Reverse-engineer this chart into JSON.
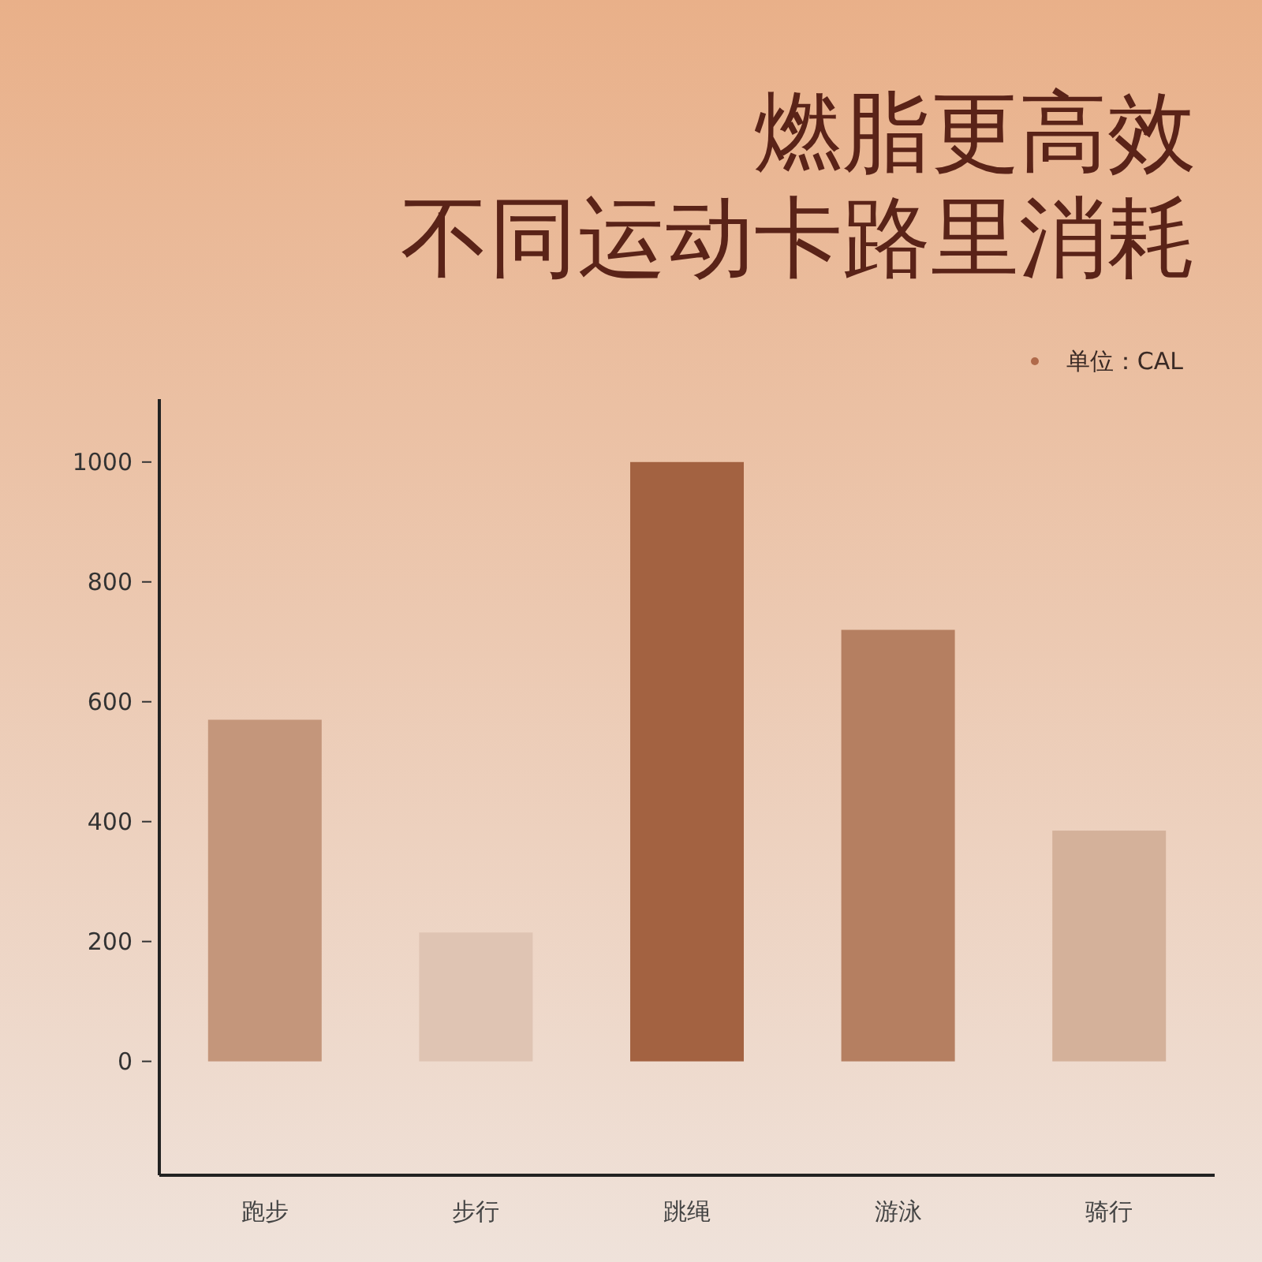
{
  "chart_data": {
    "type": "bar",
    "title": "燃脂更高效",
    "subtitle": "不同运动卡路里消耗",
    "annotations": [
      "单位：CAL"
    ],
    "categories": [
      "跑步",
      "步行",
      "跳绳",
      "游泳",
      "骑行"
    ],
    "values": [
      570,
      215,
      1000,
      720,
      385
    ],
    "colors": [
      "#c4967b",
      "#dfc4b3",
      "#a36241",
      "#b57f61",
      "#d4b19a"
    ],
    "ylim": [
      -190,
      1105
    ],
    "yticks": [
      0,
      200,
      400,
      600,
      800,
      1000
    ],
    "grid": false
  }
}
